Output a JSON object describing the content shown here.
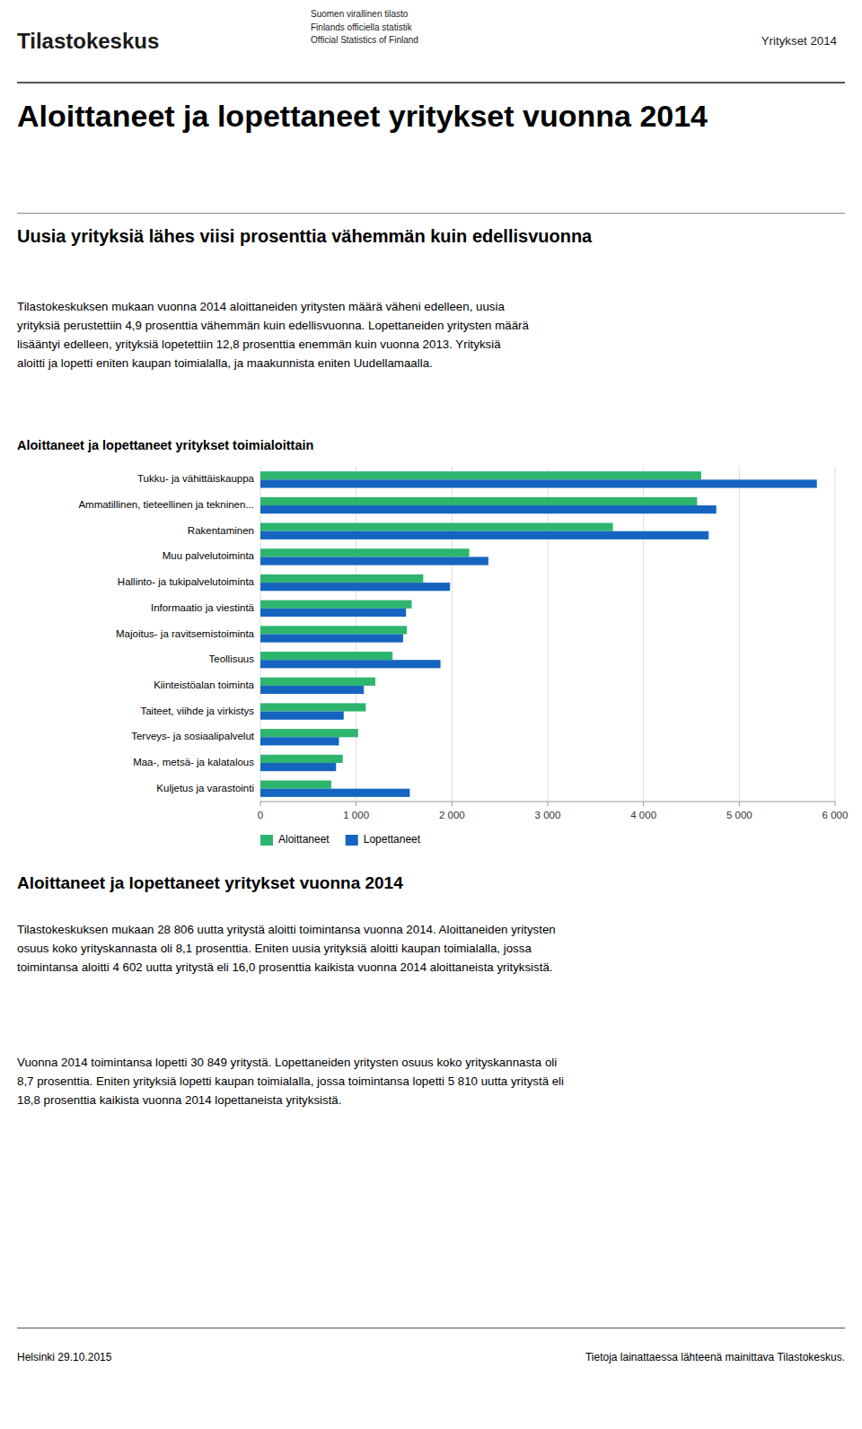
{
  "header_brand": "Tilastokeskus",
  "header_org": [
    "Suomen virallinen tilasto",
    "Finlands officiella statistik",
    "Official Statistics of Finland"
  ],
  "header_right": "Yritykset 2014",
  "main_title": "Aloittaneet ja lopettaneet yritykset vuonna 2014",
  "subtitle": "Uusia yrityksiä lähes viisi prosenttia vähemmän kuin edellisvuonna",
  "body1": [
    "Tilastokeskuksen mukaan vuonna 2014 aloittaneiden yritysten määrä väheni edelleen, uusia",
    "yrityksiä perustettiin 4,9 prosenttia vähemmän kuin edellisvuonna. Lopettaneiden yritysten määrä",
    "lisääntyi edelleen, yrityksiä lopetettiin 12,8 prosenttia enemmän kuin vuonna 2013. Yrityksiä",
    "aloitti ja lopetti eniten kaupan toimialalla, ja maakunnista eniten Uudellamaalla."
  ],
  "chart_data": {
    "type": "bar",
    "title": "Aloittaneet ja lopettaneet yritykset toimialoittain",
    "orientation": "horizontal",
    "categories": [
      "Tukku- ja vähittäiskauppa",
      "Ammatillinen, tieteellinen ja tekninen...",
      "Rakentaminen",
      "Muu palvelutoiminta",
      "Hallinto- ja tukipalvelutoiminta",
      "Informaatio ja viestintä",
      "Majoitus- ja ravitsemistoiminta",
      "Teollisuus",
      "Kiinteistöalan toiminta",
      "Taiteet, viihde ja virkistys",
      "Terveys- ja sosiaalipalvelut",
      "Maa-, metsä- ja kalatalous",
      "Kuljetus ja varastointi"
    ],
    "series": [
      {
        "name": "Aloittaneet",
        "color": "#2db56e",
        "values": [
          4602,
          4560,
          3680,
          2180,
          1700,
          1580,
          1530,
          1380,
          1200,
          1100,
          1020,
          860,
          740
        ]
      },
      {
        "name": "Lopettaneet",
        "color": "#1565c0",
        "values": [
          5810,
          4760,
          4680,
          2380,
          1980,
          1520,
          1490,
          1880,
          1080,
          870,
          820,
          790,
          1560
        ]
      }
    ],
    "xlim": [
      0,
      6000
    ],
    "xticks": [
      0,
      {
        "value": 1000,
        "label": "1 000"
      },
      {
        "value": 2000,
        "label": "2 000"
      },
      {
        "value": 3000,
        "label": "3 000"
      },
      {
        "value": 4000,
        "label": "4 000"
      },
      {
        "value": 5000,
        "label": "5 000"
      },
      {
        "value": 6000,
        "label": "6 000"
      }
    ],
    "grid": true,
    "legend": "bottom"
  },
  "section_title": "Aloittaneet ja lopettaneet yritykset vuonna 2014",
  "body2": [
    "Tilastokeskuksen mukaan 28 806 uutta yritystä aloitti toimintansa vuonna 2014. Aloittaneiden yritysten",
    "osuus koko yrityskannasta oli 8,1 prosenttia. Eniten uusia yrityksiä aloitti kaupan toimialalla, jossa",
    "toimintansa aloitti 4 602 uutta yritystä eli 16,0 prosenttia kaikista vuonna 2014 aloittaneista yrityksistä."
  ],
  "body3": [
    "Vuonna 2014 toimintansa lopetti 30 849 yritystä. Lopettaneiden yritysten osuus koko yrityskannasta oli",
    "8,7 prosenttia. Eniten yrityksiä lopetti kaupan toimialalla, jossa toimintansa lopetti 5 810 uutta yritystä eli",
    "18,8 prosenttia kaikista vuonna 2014 lopettaneista yrityksistä."
  ],
  "footer_left": "Helsinki 29.10.2015",
  "footer_right": "Tietoja lainattaessa lähteenä mainittava Tilastokeskus."
}
